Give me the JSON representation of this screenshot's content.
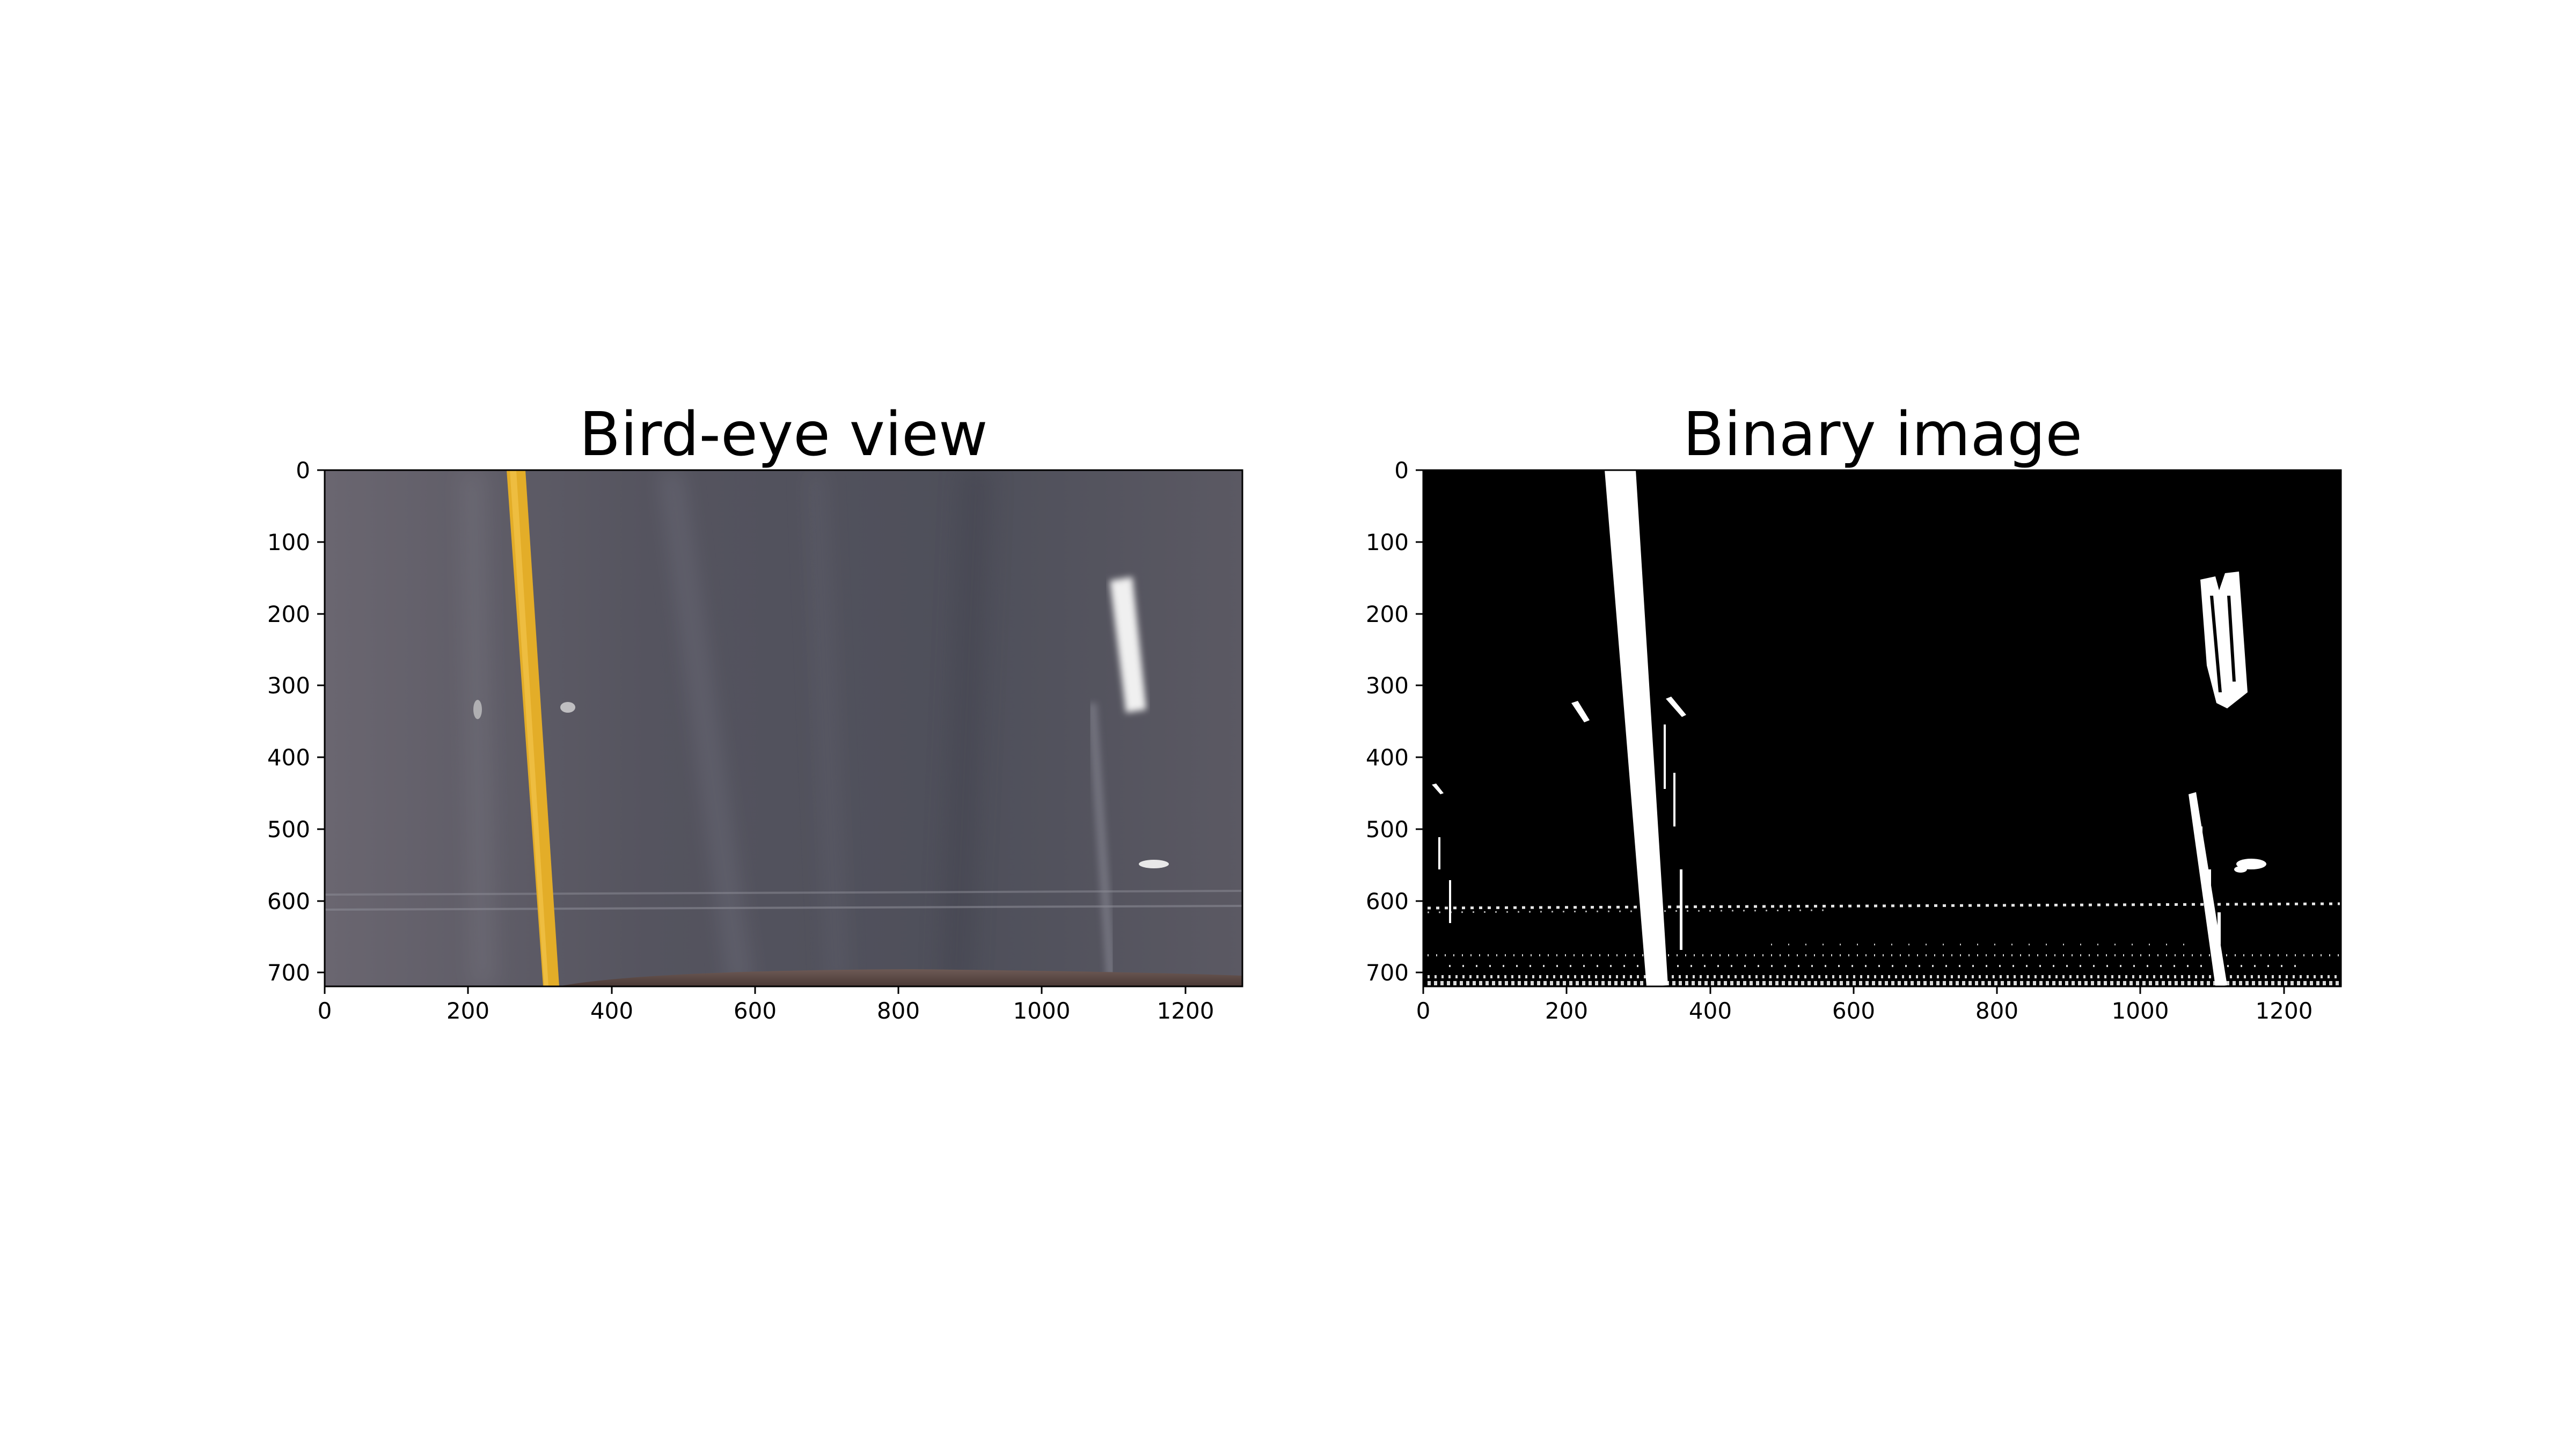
{
  "panels": [
    {
      "title": "Bird-eye view",
      "x_ticks": [
        "0",
        "200",
        "400",
        "600",
        "800",
        "1000",
        "1200"
      ],
      "y_ticks": [
        "0",
        "100",
        "200",
        "300",
        "400",
        "500",
        "600",
        "700"
      ]
    },
    {
      "title": "Binary image",
      "x_ticks": [
        "0",
        "200",
        "400",
        "600",
        "800",
        "1000",
        "1200"
      ],
      "y_ticks": [
        "0",
        "100",
        "200",
        "300",
        "400",
        "500",
        "600",
        "700"
      ]
    }
  ],
  "image_extent": {
    "x": [
      0,
      1280
    ],
    "y": [
      0,
      720
    ]
  },
  "colors": {
    "road_surface": "#5a5a66",
    "yellow_lane": "#e7b12a",
    "white_marking": "#f2f2f2",
    "binary_background": "#000000",
    "binary_foreground": "#ffffff"
  }
}
